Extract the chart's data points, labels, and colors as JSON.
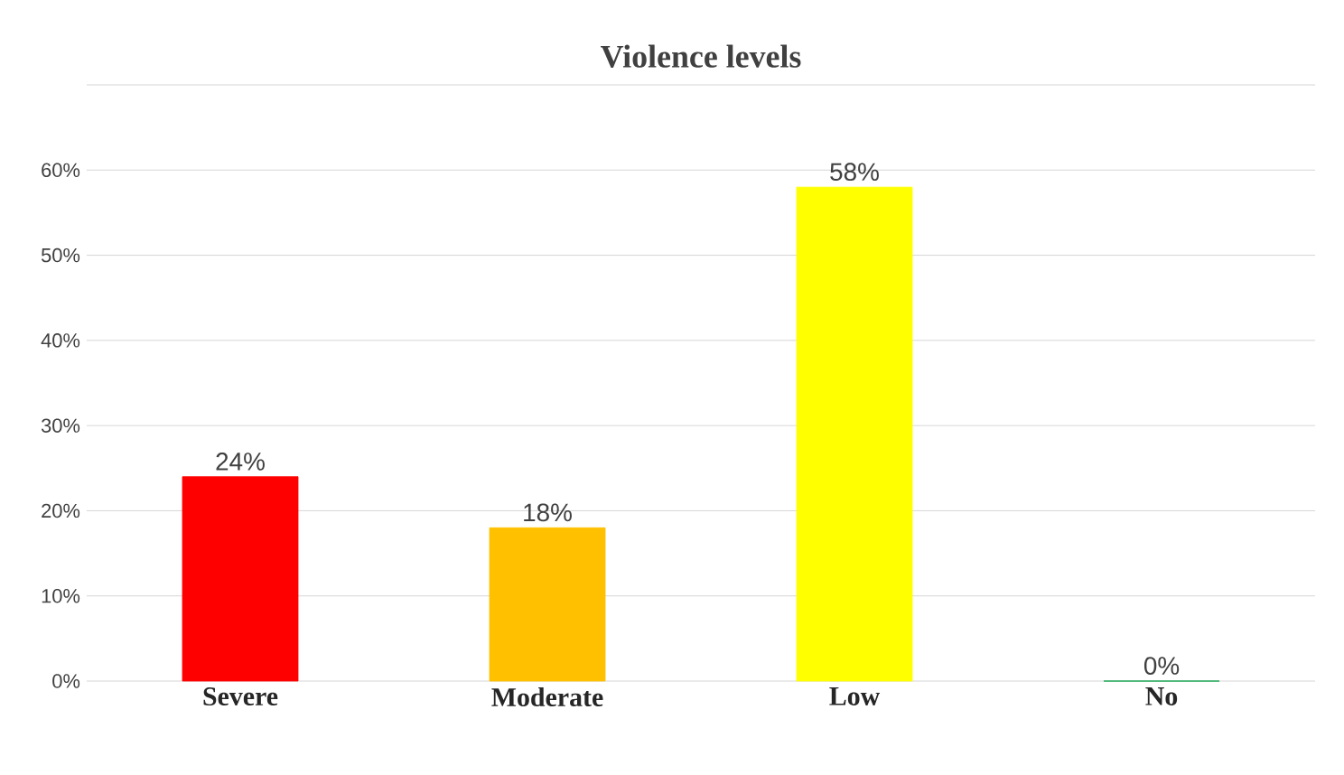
{
  "chart_data": {
    "type": "bar",
    "title": "Violence levels",
    "categories": [
      "Severe",
      "Moderate",
      "Low",
      "No"
    ],
    "values": [
      24,
      18,
      58,
      0
    ],
    "colors": [
      "#ff0000",
      "#ffc000",
      "#ffff00",
      "#00a040"
    ],
    "value_labels": [
      "24%",
      "18%",
      "58%",
      "0%"
    ],
    "ylim": [
      0,
      70
    ],
    "yticks": [
      {
        "value": 0,
        "label": "0%"
      },
      {
        "value": 10,
        "label": "10%"
      },
      {
        "value": 20,
        "label": "20%"
      },
      {
        "value": 30,
        "label": "30%"
      },
      {
        "value": 40,
        "label": "40%"
      },
      {
        "value": 50,
        "label": "50%"
      },
      {
        "value": 60,
        "label": "60%"
      },
      {
        "value": 70,
        "label": null
      }
    ],
    "grid": true
  }
}
